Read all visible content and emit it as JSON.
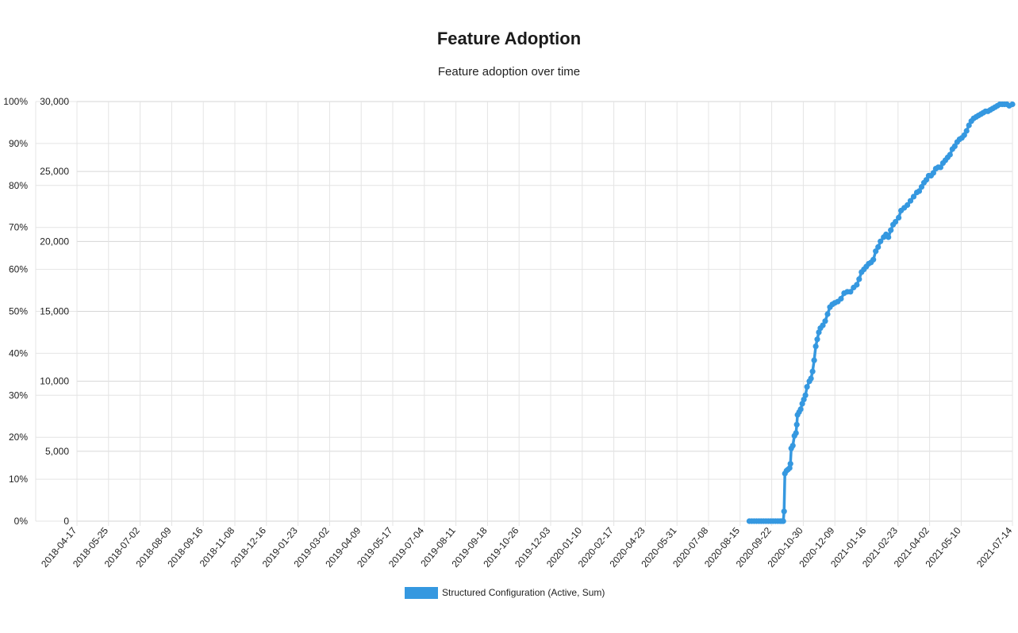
{
  "header": {
    "title": "Feature Adoption",
    "subtitle": "Feature adoption over time"
  },
  "legend": {
    "label": "Structured Configuration (Active, Sum)",
    "color": "#3598e0"
  },
  "chart_data": {
    "type": "line",
    "title": "Feature Adoption",
    "subtitle": "Feature adoption over time",
    "grid": true,
    "legend_position": "bottom",
    "y_left": {
      "ticks": [
        "100%",
        "90%",
        "80%",
        "70%",
        "60%",
        "50%",
        "40%",
        "30%",
        "20%",
        "10%",
        "0%"
      ],
      "range": [
        0,
        100
      ]
    },
    "y_right": {
      "ticks": [
        "30,000",
        "25,000",
        "20,000",
        "15,000",
        "10,000",
        "5,000",
        "0"
      ],
      "range": [
        0,
        30000
      ]
    },
    "x_ticks": [
      "2018-04-17",
      "2018-05-25",
      "2018-07-02",
      "2018-08-09",
      "2018-09-16",
      "2018-11-08",
      "2018-12-16",
      "2019-01-23",
      "2019-03-02",
      "2019-04-09",
      "2019-05-17",
      "2019-07-04",
      "2019-08-11",
      "2019-09-18",
      "2019-10-26",
      "2019-12-03",
      "2020-01-10",
      "2020-02-17",
      "2020-04-23",
      "2020-05-31",
      "2020-07-08",
      "2020-08-15",
      "2020-09-22",
      "2020-10-30",
      "2020-12-09",
      "2021-01-16",
      "2021-02-23",
      "2021-04-02",
      "2021-05-10",
      "2021-07-14"
    ],
    "x_range": [
      "2018-04-17",
      "2021-07-14"
    ],
    "series": [
      {
        "name": "Structured Configuration (Active, Sum)",
        "color": "#3598e0",
        "points": [
          [
            "2020-08-15",
            0
          ],
          [
            "2020-08-18",
            0
          ],
          [
            "2020-08-21",
            0
          ],
          [
            "2020-08-24",
            0
          ],
          [
            "2020-08-27",
            0
          ],
          [
            "2020-08-30",
            0
          ],
          [
            "2020-09-02",
            0
          ],
          [
            "2020-09-05",
            0
          ],
          [
            "2020-09-08",
            0
          ],
          [
            "2020-09-11",
            0
          ],
          [
            "2020-09-14",
            0
          ],
          [
            "2020-09-17",
            0
          ],
          [
            "2020-09-20",
            0
          ],
          [
            "2020-09-23",
            0
          ],
          [
            "2020-09-25",
            0
          ],
          [
            "2020-09-27",
            0
          ],
          [
            "2020-09-28",
            700
          ],
          [
            "2020-09-29",
            3400
          ],
          [
            "2020-10-01",
            3600
          ],
          [
            "2020-10-03",
            3700
          ],
          [
            "2020-10-05",
            3800
          ],
          [
            "2020-10-06",
            4100
          ],
          [
            "2020-10-07",
            5200
          ],
          [
            "2020-10-09",
            5400
          ],
          [
            "2020-10-11",
            6100
          ],
          [
            "2020-10-13",
            6300
          ],
          [
            "2020-10-14",
            6900
          ],
          [
            "2020-10-15",
            7600
          ],
          [
            "2020-10-17",
            7800
          ],
          [
            "2020-10-19",
            8000
          ],
          [
            "2020-10-21",
            8400
          ],
          [
            "2020-10-23",
            8700
          ],
          [
            "2020-10-25",
            9000
          ],
          [
            "2020-10-27",
            9600
          ],
          [
            "2020-10-30",
            10000
          ],
          [
            "2020-11-01",
            10200
          ],
          [
            "2020-11-03",
            10700
          ],
          [
            "2020-11-05",
            11500
          ],
          [
            "2020-11-07",
            12500
          ],
          [
            "2020-11-09",
            13000
          ],
          [
            "2020-11-11",
            13500
          ],
          [
            "2020-11-13",
            13800
          ],
          [
            "2020-11-16",
            14000
          ],
          [
            "2020-11-19",
            14300
          ],
          [
            "2020-11-22",
            14800
          ],
          [
            "2020-11-25",
            15300
          ],
          [
            "2020-11-28",
            15500
          ],
          [
            "2020-12-01",
            15600
          ],
          [
            "2020-12-05",
            15700
          ],
          [
            "2020-12-09",
            15900
          ],
          [
            "2020-12-13",
            16300
          ],
          [
            "2020-12-17",
            16400
          ],
          [
            "2020-12-21",
            16400
          ],
          [
            "2020-12-25",
            16700
          ],
          [
            "2020-12-29",
            16900
          ],
          [
            "2021-01-01",
            17300
          ],
          [
            "2021-01-04",
            17800
          ],
          [
            "2021-01-07",
            18000
          ],
          [
            "2021-01-10",
            18200
          ],
          [
            "2021-01-13",
            18400
          ],
          [
            "2021-01-16",
            18500
          ],
          [
            "2021-01-19",
            18700
          ],
          [
            "2021-01-22",
            19300
          ],
          [
            "2021-01-25",
            19600
          ],
          [
            "2021-01-28",
            20000
          ],
          [
            "2021-02-01",
            20300
          ],
          [
            "2021-02-04",
            20500
          ],
          [
            "2021-02-07",
            20300
          ],
          [
            "2021-02-10",
            20800
          ],
          [
            "2021-02-13",
            21200
          ],
          [
            "2021-02-16",
            21400
          ],
          [
            "2021-02-20",
            21700
          ],
          [
            "2021-02-23",
            22200
          ],
          [
            "2021-02-27",
            22400
          ],
          [
            "2021-03-03",
            22600
          ],
          [
            "2021-03-07",
            22900
          ],
          [
            "2021-03-11",
            23200
          ],
          [
            "2021-03-15",
            23500
          ],
          [
            "2021-03-18",
            23600
          ],
          [
            "2021-03-21",
            23900
          ],
          [
            "2021-03-24",
            24200
          ],
          [
            "2021-03-27",
            24400
          ],
          [
            "2021-03-30",
            24700
          ],
          [
            "2021-04-02",
            24700
          ],
          [
            "2021-04-05",
            24900
          ],
          [
            "2021-04-08",
            25200
          ],
          [
            "2021-04-11",
            25300
          ],
          [
            "2021-04-14",
            25300
          ],
          [
            "2021-04-17",
            25600
          ],
          [
            "2021-04-20",
            25800
          ],
          [
            "2021-04-23",
            26000
          ],
          [
            "2021-04-26",
            26200
          ],
          [
            "2021-04-29",
            26600
          ],
          [
            "2021-05-02",
            26800
          ],
          [
            "2021-05-05",
            27100
          ],
          [
            "2021-05-08",
            27300
          ],
          [
            "2021-05-11",
            27400
          ],
          [
            "2021-05-14",
            27600
          ],
          [
            "2021-05-17",
            27900
          ],
          [
            "2021-05-20",
            28300
          ],
          [
            "2021-05-23",
            28600
          ],
          [
            "2021-05-26",
            28800
          ],
          [
            "2021-05-29",
            28900
          ],
          [
            "2021-06-01",
            29000
          ],
          [
            "2021-06-04",
            29100
          ],
          [
            "2021-06-07",
            29200
          ],
          [
            "2021-06-10",
            29300
          ],
          [
            "2021-06-13",
            29300
          ],
          [
            "2021-06-16",
            29400
          ],
          [
            "2021-06-19",
            29500
          ],
          [
            "2021-06-22",
            29600
          ],
          [
            "2021-06-25",
            29700
          ],
          [
            "2021-06-28",
            29800
          ],
          [
            "2021-07-01",
            29800
          ],
          [
            "2021-07-04",
            29800
          ],
          [
            "2021-07-07",
            29800
          ],
          [
            "2021-07-10",
            29700
          ],
          [
            "2021-07-14",
            29800
          ]
        ]
      }
    ]
  }
}
